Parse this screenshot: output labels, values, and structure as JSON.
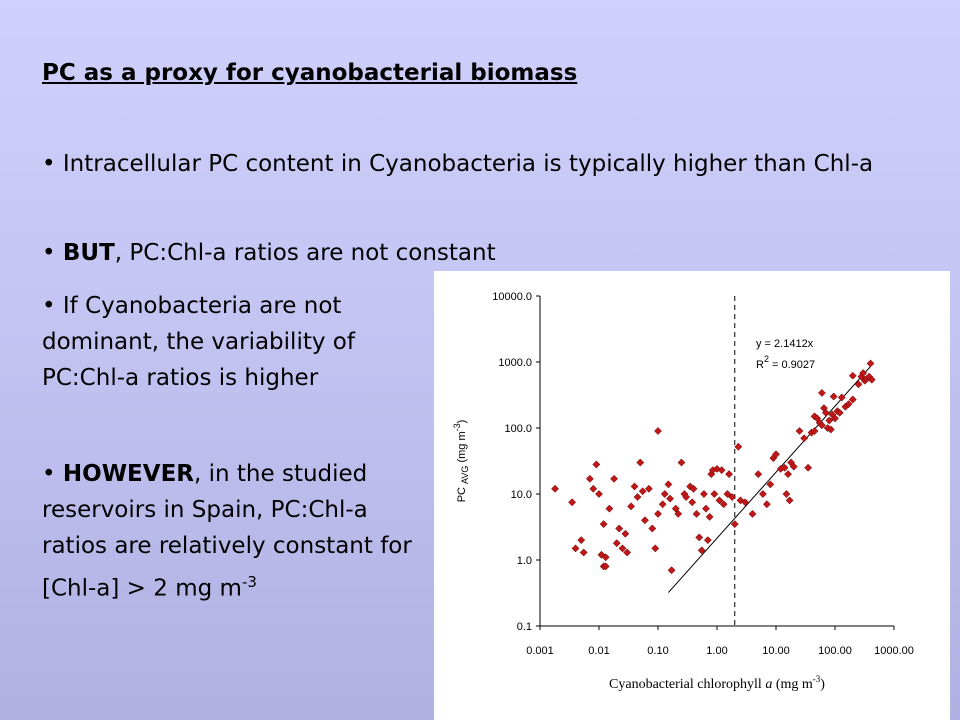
{
  "slide": {
    "title": "PC as a proxy for cyanobacterial biomass",
    "bullets": [
      {
        "marker": "•",
        "text": "Intracellular PC content in Cyanobacteria is typically higher than Chl-a"
      },
      {
        "marker": "•",
        "bold": "BUT",
        "text": ", PC:Chl-a ratios are not constant"
      },
      {
        "marker": "•",
        "text": "If Cyanobacteria are not dominant, the variability of PC:Chl-a ratios is higher"
      },
      {
        "marker": "•",
        "bold": "HOWEVER",
        "text": ", in the studied reservoirs in Spain, PC:Chl-a ratios are relatively constant for [Chl-a] > 2 mg m",
        "sup": "-3"
      }
    ]
  },
  "chart_data": {
    "type": "scatter",
    "x_scale": "log",
    "y_scale": "log",
    "xlim": [
      0.001,
      1000
    ],
    "ylim": [
      0.1,
      10000
    ],
    "xticks": [
      "0.001",
      "0.01",
      "0.10",
      "1.00",
      "10.00",
      "100.00",
      "1000.00"
    ],
    "yticks": [
      "0.1",
      "1.0",
      "10.0",
      "100.0",
      "1000.0",
      "10000.0"
    ],
    "xlabel": {
      "text": "Cyanobacterial chlorophyll ",
      "italic": "a",
      "unit": "(mg m",
      "unit_sup": "-3",
      "unit_end": ")"
    },
    "ylabel": {
      "text": "PC ",
      "sub": "AVG",
      "unit": " (mg m",
      "unit_sup": "-3",
      "unit_end": ")"
    },
    "equation": "y = 2.1412x",
    "r2_label": "R",
    "r2_sup": "2",
    "r2_value": " = 0.9027",
    "threshold_x": 2,
    "fit": {
      "slope": 2.1412,
      "x_range": [
        0.15,
        400
      ]
    },
    "marker_color": "#c01818",
    "points": [
      [
        0.0018,
        12
      ],
      [
        0.0035,
        7.5
      ],
      [
        0.004,
        1.5
      ],
      [
        0.005,
        2
      ],
      [
        0.0055,
        1.3
      ],
      [
        0.007,
        17
      ],
      [
        0.008,
        12
      ],
      [
        0.009,
        28
      ],
      [
        0.01,
        10
      ],
      [
        0.011,
        1.2
      ],
      [
        0.012,
        3.5
      ],
      [
        0.012,
        0.8
      ],
      [
        0.013,
        1.1
      ],
      [
        0.013,
        0.8
      ],
      [
        0.015,
        6
      ],
      [
        0.018,
        17
      ],
      [
        0.02,
        1.8
      ],
      [
        0.022,
        3
      ],
      [
        0.025,
        1.5
      ],
      [
        0.028,
        2.5
      ],
      [
        0.03,
        1.3
      ],
      [
        0.035,
        6.5
      ],
      [
        0.04,
        13
      ],
      [
        0.045,
        9
      ],
      [
        0.05,
        30
      ],
      [
        0.055,
        11
      ],
      [
        0.06,
        4
      ],
      [
        0.07,
        12
      ],
      [
        0.08,
        3
      ],
      [
        0.09,
        1.5
      ],
      [
        0.1,
        90
      ],
      [
        0.1,
        5
      ],
      [
        0.12,
        7
      ],
      [
        0.13,
        10
      ],
      [
        0.15,
        14
      ],
      [
        0.16,
        8.5
      ],
      [
        0.17,
        0.7
      ],
      [
        0.2,
        6
      ],
      [
        0.22,
        5
      ],
      [
        0.25,
        30
      ],
      [
        0.28,
        10
      ],
      [
        0.3,
        9
      ],
      [
        0.35,
        13
      ],
      [
        0.38,
        7.5
      ],
      [
        0.4,
        12
      ],
      [
        0.45,
        5
      ],
      [
        0.5,
        2.2
      ],
      [
        0.55,
        1.4
      ],
      [
        0.6,
        10
      ],
      [
        0.65,
        6
      ],
      [
        0.7,
        2
      ],
      [
        0.75,
        4.5
      ],
      [
        0.8,
        20
      ],
      [
        0.85,
        23
      ],
      [
        0.9,
        10
      ],
      [
        1.0,
        24
      ],
      [
        1.1,
        8
      ],
      [
        1.2,
        23
      ],
      [
        1.3,
        7
      ],
      [
        1.5,
        10
      ],
      [
        1.6,
        20
      ],
      [
        1.8,
        9
      ],
      [
        2.0,
        3.5
      ],
      [
        2.3,
        52
      ],
      [
        2.5,
        8
      ],
      [
        3,
        7.5
      ],
      [
        4,
        5
      ],
      [
        5,
        20
      ],
      [
        6,
        10
      ],
      [
        7,
        7
      ],
      [
        8,
        14
      ],
      [
        9,
        35
      ],
      [
        10,
        40
      ],
      [
        12,
        24
      ],
      [
        14,
        25
      ],
      [
        15,
        10
      ],
      [
        16,
        20
      ],
      [
        17,
        8
      ],
      [
        18,
        30
      ],
      [
        20,
        26
      ],
      [
        25,
        90
      ],
      [
        30,
        70
      ],
      [
        35,
        25
      ],
      [
        40,
        85
      ],
      [
        45,
        150
      ],
      [
        50,
        140
      ],
      [
        55,
        120
      ],
      [
        60,
        110
      ],
      [
        65,
        200
      ],
      [
        70,
        170
      ],
      [
        75,
        100
      ],
      [
        80,
        130
      ],
      [
        85,
        95
      ],
      [
        90,
        160
      ],
      [
        95,
        300
      ],
      [
        100,
        140
      ],
      [
        110,
        180
      ],
      [
        120,
        170
      ],
      [
        130,
        290
      ],
      [
        150,
        210
      ],
      [
        170,
        230
      ],
      [
        200,
        270
      ],
      [
        250,
        460
      ],
      [
        280,
        600
      ],
      [
        300,
        680
      ],
      [
        320,
        520
      ],
      [
        350,
        560
      ],
      [
        380,
        600
      ],
      [
        400,
        950
      ],
      [
        420,
        540
      ],
      [
        60,
        340
      ],
      [
        45,
        90
      ],
      [
        200,
        620
      ]
    ]
  }
}
